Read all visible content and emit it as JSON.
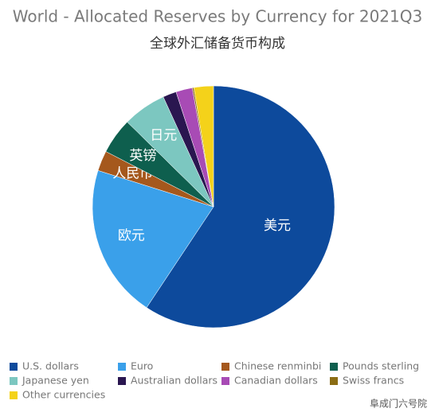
{
  "chart_data": {
    "type": "pie",
    "title": "World - Allocated Reserves by Currency for 2021Q3",
    "subtitle": "全球外汇储备货币构成",
    "categories": [
      "U.S. dollars",
      "Euro",
      "Chinese renminbi",
      "Pounds sterling",
      "Japanese yen",
      "Australian dollars",
      "Canadian dollars",
      "Swiss francs",
      "Other currencies"
    ],
    "values": [
      59.2,
      20.5,
      2.7,
      4.8,
      5.8,
      1.8,
      2.2,
      0.2,
      2.6
    ],
    "colors": [
      "#0d4a9c",
      "#3aa0ea",
      "#a5581d",
      "#0e5f4e",
      "#7cc7c0",
      "#2a1650",
      "#a84bb5",
      "#8b6d14",
      "#f4d21a"
    ],
    "slice_labels": [
      "美元",
      "欧元",
      "人民币",
      "英镑",
      "日元",
      null,
      null,
      null,
      null
    ],
    "watermark": "阜成门六号院"
  }
}
